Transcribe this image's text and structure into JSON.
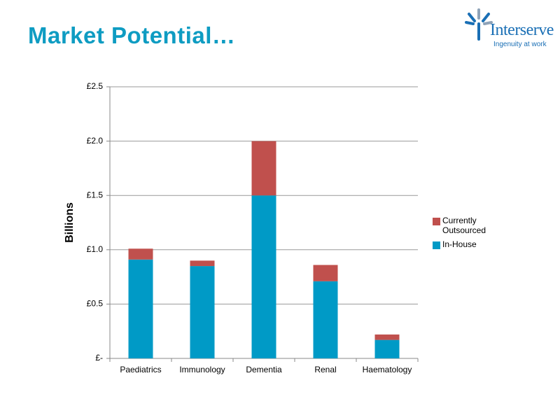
{
  "chart_data": {
    "type": "stacked-bar",
    "title": "Market Potential…",
    "y_label": "Billions",
    "categories": [
      "Paediatrics",
      "Immunology",
      "Dementia",
      "Renal",
      "Haematology"
    ],
    "series": [
      {
        "name": "In-House",
        "color": "#009ac6",
        "values": [
          0.91,
          0.85,
          1.5,
          0.71,
          0.17
        ]
      },
      {
        "name": "Currently Outsourced",
        "color": "#c0504d",
        "values": [
          0.1,
          0.05,
          0.5,
          0.15,
          0.05
        ]
      }
    ],
    "ylim": [
      0,
      2.5
    ],
    "yticks": [
      {
        "value": 0,
        "label": "£-"
      },
      {
        "value": 0.5,
        "label": "£0.5"
      },
      {
        "value": 1.0,
        "label": "£1.0"
      },
      {
        "value": 1.5,
        "label": "£1.5"
      },
      {
        "value": 2.0,
        "label": "£2.0"
      },
      {
        "value": 2.5,
        "label": "£2.5"
      }
    ],
    "grid": true,
    "legend": "right"
  },
  "logo": {
    "name": "Interserve",
    "tagline": "Ingenuity at work"
  }
}
